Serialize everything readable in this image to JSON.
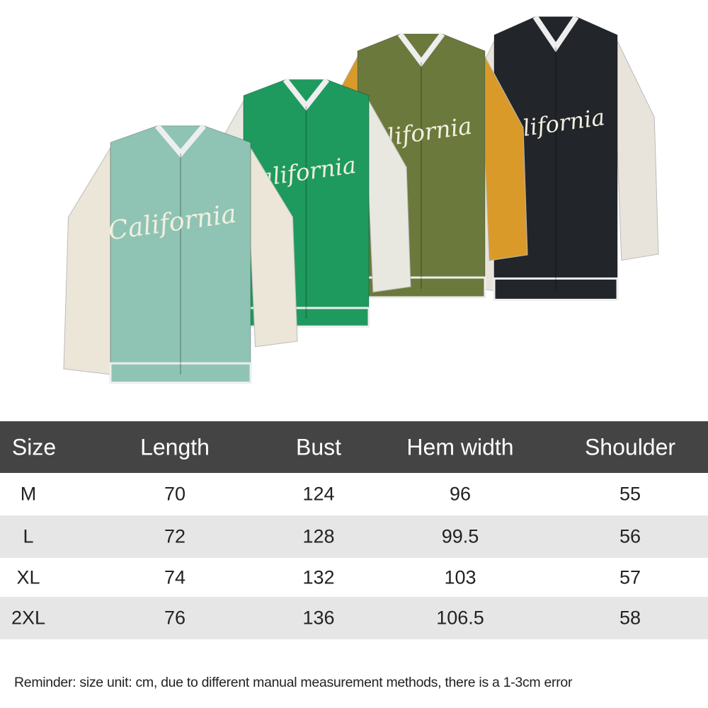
{
  "image": {
    "subject": "four varsity jackets",
    "jacket_colors": [
      "#8fc4b4",
      "#1f9a5e",
      "#6b7a3c",
      "#22252a"
    ],
    "sleeve_colors": [
      "#ece6d8",
      "#e9e8e0",
      "#d99a2a",
      "#e8e4dc"
    ],
    "logo_text": "California"
  },
  "size_table": {
    "headers": [
      "Size",
      "Length",
      "Bust",
      "Hem width",
      "Shoulder"
    ],
    "rows": [
      [
        "M",
        "70",
        "124",
        "96",
        "55"
      ],
      [
        "L",
        "72",
        "128",
        "99.5",
        "56"
      ],
      [
        "XL",
        "74",
        "132",
        "103",
        "57"
      ],
      [
        "2XL",
        "76",
        "136",
        "106.5",
        "58"
      ]
    ],
    "header_bg": "#444444",
    "alt_row_bg": "#e6e6e6"
  },
  "reminder": {
    "label": "Reminder",
    "text": ": size unit: cm, due to different manual measurement methods, there is a 1-3cm error"
  }
}
